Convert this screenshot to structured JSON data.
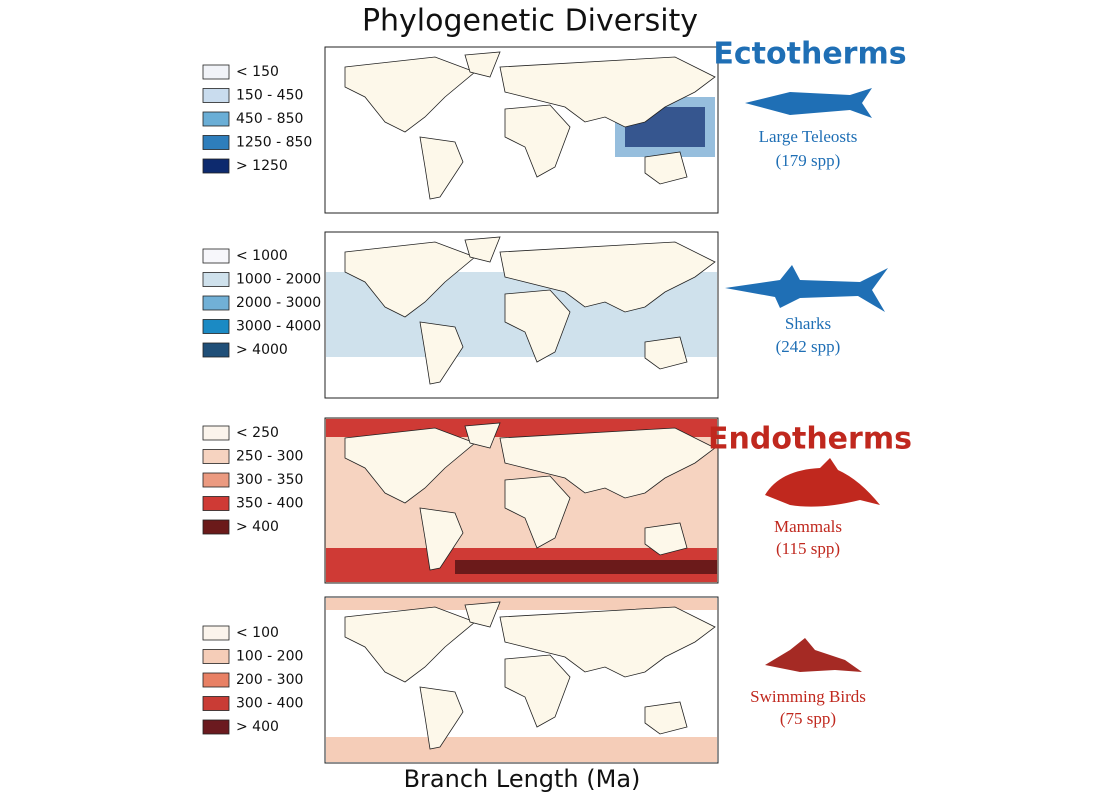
{
  "title": "Phylogenetic Diversity",
  "x_label": "Branch Length (Ma)",
  "groups": [
    {
      "name": "Ectotherms",
      "color": "#1f6fb5"
    },
    {
      "name": "Endotherms",
      "color": "#c0281e"
    }
  ],
  "panels": [
    {
      "taxon": "Large Teleosts",
      "count": "(179 spp)",
      "group": 0,
      "legend": [
        {
          "label": "< 150",
          "color": "#f1f3f8"
        },
        {
          "label": "150 - 450",
          "color": "#c9dcee"
        },
        {
          "label": "450 - 850",
          "color": "#6aaed6"
        },
        {
          "label": "1250 - 850",
          "color": "#2e7ebc"
        },
        {
          "label": "> 1250",
          "color": "#0d2a6e"
        }
      ]
    },
    {
      "taxon": "Sharks",
      "count": "(242 spp)",
      "group": 0,
      "legend": [
        {
          "label": "< 1000",
          "color": "#f7f7fb"
        },
        {
          "label": "1000 - 2000",
          "color": "#cfe1ec"
        },
        {
          "label": "2000 - 3000",
          "color": "#71b0d6"
        },
        {
          "label": "3000 - 4000",
          "color": "#1b8ac4"
        },
        {
          "label": "> 4000",
          "color": "#1f4f78"
        }
      ]
    },
    {
      "taxon": "Mammals",
      "count": "(115 spp)",
      "group": 1,
      "legend": [
        {
          "label": "< 250",
          "color": "#fbf4ec"
        },
        {
          "label": "250 - 300",
          "color": "#f6d3c0"
        },
        {
          "label": "300 - 350",
          "color": "#eb9a80"
        },
        {
          "label": "350 - 400",
          "color": "#cf3a35"
        },
        {
          "label": "> 400",
          "color": "#6b1a1a"
        }
      ]
    },
    {
      "taxon": "Swimming Birds",
      "count": "(75 spp)",
      "group": 1,
      "legend": [
        {
          "label": "< 100",
          "color": "#fbf4ec"
        },
        {
          "label": "100 - 200",
          "color": "#f5cdb8"
        },
        {
          "label": "200 - 300",
          "color": "#e88064"
        },
        {
          "label": "300 - 400",
          "color": "#c93c35"
        },
        {
          "label": "> 400",
          "color": "#6b1a1f"
        }
      ]
    }
  ]
}
